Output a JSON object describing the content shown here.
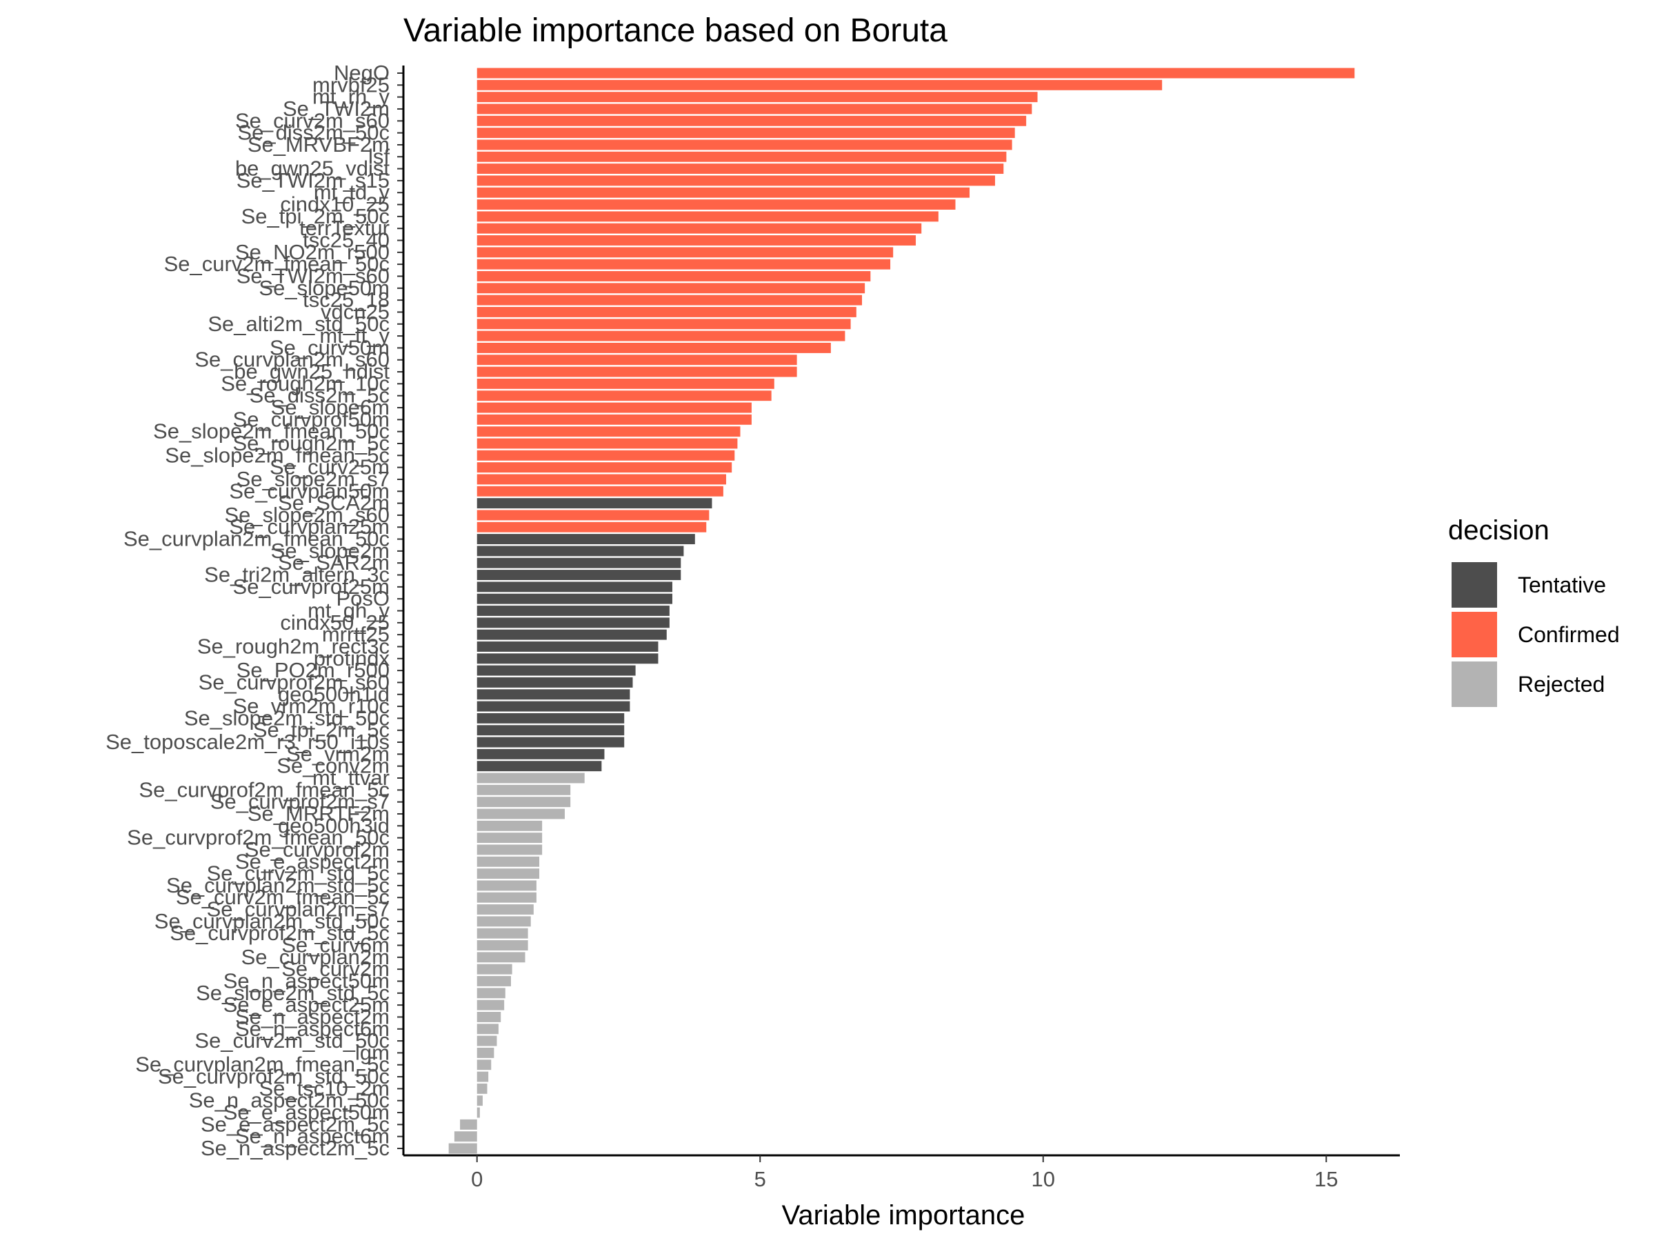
{
  "chart_data": {
    "type": "bar",
    "orientation": "horizontal",
    "title": "Variable importance based on Boruta",
    "xlabel": "Variable importance",
    "ylabel": "",
    "xlim": [
      -1.3,
      16.3
    ],
    "xticks": [
      0,
      5,
      10,
      15
    ],
    "grid": false,
    "legend": {
      "title": "decision",
      "position": "right",
      "entries": [
        {
          "label": "Tentative",
          "color": "#4d4d4d"
        },
        {
          "label": "Confirmed",
          "color": "#ff6347"
        },
        {
          "label": "Rejected",
          "color": "#b3b3b3"
        }
      ]
    },
    "colors": {
      "Tentative": "#4d4d4d",
      "Confirmed": "#ff6347",
      "Rejected": "#b3b3b3"
    },
    "bars": [
      {
        "label": "NegO",
        "value": 15.5,
        "decision": "Confirmed"
      },
      {
        "label": "mrvbf25",
        "value": 12.1,
        "decision": "Confirmed"
      },
      {
        "label": "mt_rh_y",
        "value": 9.9,
        "decision": "Confirmed"
      },
      {
        "label": "Se_TWI2m",
        "value": 9.8,
        "decision": "Confirmed"
      },
      {
        "label": "Se_curv2m_s60",
        "value": 9.7,
        "decision": "Confirmed"
      },
      {
        "label": "Se_diss2m_50c",
        "value": 9.5,
        "decision": "Confirmed"
      },
      {
        "label": "Se_MRVBF2m",
        "value": 9.45,
        "decision": "Confirmed"
      },
      {
        "label": "lsf",
        "value": 9.35,
        "decision": "Confirmed"
      },
      {
        "label": "be_gwn25_vdist",
        "value": 9.3,
        "decision": "Confirmed"
      },
      {
        "label": "Se_TWI2m_s15",
        "value": 9.15,
        "decision": "Confirmed"
      },
      {
        "label": "mt_td_y",
        "value": 8.7,
        "decision": "Confirmed"
      },
      {
        "label": "cindx10_25",
        "value": 8.45,
        "decision": "Confirmed"
      },
      {
        "label": "Se_tpi_2m_50c",
        "value": 8.15,
        "decision": "Confirmed"
      },
      {
        "label": "terrTextur",
        "value": 7.85,
        "decision": "Confirmed"
      },
      {
        "label": "tsc25_40",
        "value": 7.75,
        "decision": "Confirmed"
      },
      {
        "label": "Se_NO2m_r500",
        "value": 7.35,
        "decision": "Confirmed"
      },
      {
        "label": "Se_curv2m_fmean_50c",
        "value": 7.3,
        "decision": "Confirmed"
      },
      {
        "label": "Se_TWI2m_s60",
        "value": 6.95,
        "decision": "Confirmed"
      },
      {
        "label": "Se_slope50m",
        "value": 6.85,
        "decision": "Confirmed"
      },
      {
        "label": "tsc25_18",
        "value": 6.8,
        "decision": "Confirmed"
      },
      {
        "label": "vdcn25",
        "value": 6.7,
        "decision": "Confirmed"
      },
      {
        "label": "Se_alti2m_std_50c",
        "value": 6.6,
        "decision": "Confirmed"
      },
      {
        "label": "mt_tt_y",
        "value": 6.5,
        "decision": "Confirmed"
      },
      {
        "label": "Se_curv50m",
        "value": 6.25,
        "decision": "Confirmed"
      },
      {
        "label": "Se_curvplan2m_s60",
        "value": 5.65,
        "decision": "Confirmed"
      },
      {
        "label": "be_gwn25_hdist",
        "value": 5.65,
        "decision": "Confirmed"
      },
      {
        "label": "Se_rough2m_10c",
        "value": 5.25,
        "decision": "Confirmed"
      },
      {
        "label": "Se_diss2m_5c",
        "value": 5.2,
        "decision": "Confirmed"
      },
      {
        "label": "Se_slope6m",
        "value": 4.85,
        "decision": "Confirmed"
      },
      {
        "label": "Se_curvprof50m",
        "value": 4.85,
        "decision": "Confirmed"
      },
      {
        "label": "Se_slope2m_fmean_50c",
        "value": 4.65,
        "decision": "Confirmed"
      },
      {
        "label": "Se_rough2m_5c",
        "value": 4.6,
        "decision": "Confirmed"
      },
      {
        "label": "Se_slope2m_fmean_5c",
        "value": 4.55,
        "decision": "Confirmed"
      },
      {
        "label": "Se_curv25m",
        "value": 4.5,
        "decision": "Confirmed"
      },
      {
        "label": "Se_slope2m_s7",
        "value": 4.4,
        "decision": "Confirmed"
      },
      {
        "label": "Se_curvplan50m",
        "value": 4.35,
        "decision": "Confirmed"
      },
      {
        "label": "Se_SCA2m",
        "value": 4.15,
        "decision": "Tentative"
      },
      {
        "label": "Se_slope2m_s60",
        "value": 4.1,
        "decision": "Confirmed"
      },
      {
        "label": "Se_curvplan25m",
        "value": 4.05,
        "decision": "Confirmed"
      },
      {
        "label": "Se_curvplan2m_fmean_50c",
        "value": 3.85,
        "decision": "Tentative"
      },
      {
        "label": "Se_slope2m",
        "value": 3.65,
        "decision": "Tentative"
      },
      {
        "label": "Se_SAR2m",
        "value": 3.6,
        "decision": "Tentative"
      },
      {
        "label": "Se_tri2m_altern_3c",
        "value": 3.6,
        "decision": "Tentative"
      },
      {
        "label": "Se_curvprof25m",
        "value": 3.45,
        "decision": "Tentative"
      },
      {
        "label": "PosO",
        "value": 3.45,
        "decision": "Tentative"
      },
      {
        "label": "mt_gh_y",
        "value": 3.4,
        "decision": "Tentative"
      },
      {
        "label": "cindx50_25",
        "value": 3.4,
        "decision": "Tentative"
      },
      {
        "label": "mrrtf25",
        "value": 3.35,
        "decision": "Tentative"
      },
      {
        "label": "Se_rough2m_rect3c",
        "value": 3.2,
        "decision": "Tentative"
      },
      {
        "label": "protindx",
        "value": 3.2,
        "decision": "Tentative"
      },
      {
        "label": "Se_PO2m_r500",
        "value": 2.8,
        "decision": "Tentative"
      },
      {
        "label": "Se_curvprof2m_s60",
        "value": 2.75,
        "decision": "Tentative"
      },
      {
        "label": "geo500h1id",
        "value": 2.7,
        "decision": "Tentative"
      },
      {
        "label": "Se_vrm2m_r10c",
        "value": 2.7,
        "decision": "Tentative"
      },
      {
        "label": "Se_slope2m_std_50c",
        "value": 2.6,
        "decision": "Tentative"
      },
      {
        "label": "Se_tpi_2m_5c",
        "value": 2.6,
        "decision": "Tentative"
      },
      {
        "label": "Se_toposcale2m_r3_r50_i10s",
        "value": 2.6,
        "decision": "Tentative"
      },
      {
        "label": "Se_vrm2m",
        "value": 2.25,
        "decision": "Tentative"
      },
      {
        "label": "Se_conv2m",
        "value": 2.2,
        "decision": "Tentative"
      },
      {
        "label": "mt_ttvar",
        "value": 1.9,
        "decision": "Rejected"
      },
      {
        "label": "Se_curvprof2m_fmean_5c",
        "value": 1.65,
        "decision": "Rejected"
      },
      {
        "label": "Se_curvprof2m_s7",
        "value": 1.65,
        "decision": "Rejected"
      },
      {
        "label": "Se_MRRTF2m",
        "value": 1.55,
        "decision": "Rejected"
      },
      {
        "label": "geo500h3id",
        "value": 1.15,
        "decision": "Rejected"
      },
      {
        "label": "Se_curvprof2m_fmean_50c",
        "value": 1.15,
        "decision": "Rejected"
      },
      {
        "label": "Se_curvprof2m",
        "value": 1.15,
        "decision": "Rejected"
      },
      {
        "label": "Se_e_aspect2m",
        "value": 1.1,
        "decision": "Rejected"
      },
      {
        "label": "Se_curv2m_std_5c",
        "value": 1.1,
        "decision": "Rejected"
      },
      {
        "label": "Se_curvplan2m_std_5c",
        "value": 1.05,
        "decision": "Rejected"
      },
      {
        "label": "Se_curv2m_fmean_5c",
        "value": 1.05,
        "decision": "Rejected"
      },
      {
        "label": "Se_curvplan2m_s7",
        "value": 1.0,
        "decision": "Rejected"
      },
      {
        "label": "Se_curvplan2m_std_50c",
        "value": 0.95,
        "decision": "Rejected"
      },
      {
        "label": "Se_curvprof2m_std_5c",
        "value": 0.9,
        "decision": "Rejected"
      },
      {
        "label": "Se_curv6m",
        "value": 0.9,
        "decision": "Rejected"
      },
      {
        "label": "Se_curvplan2m",
        "value": 0.85,
        "decision": "Rejected"
      },
      {
        "label": "Se_curv2m",
        "value": 0.62,
        "decision": "Rejected"
      },
      {
        "label": "Se_n_aspect50m",
        "value": 0.6,
        "decision": "Rejected"
      },
      {
        "label": "Se_slope2m_std_5c",
        "value": 0.5,
        "decision": "Rejected"
      },
      {
        "label": "Se_e_aspect25m",
        "value": 0.48,
        "decision": "Rejected"
      },
      {
        "label": "Se_n_aspect2m",
        "value": 0.42,
        "decision": "Rejected"
      },
      {
        "label": "Se_n_aspect6m",
        "value": 0.38,
        "decision": "Rejected"
      },
      {
        "label": "Se_curv2m_std_50c",
        "value": 0.35,
        "decision": "Rejected"
      },
      {
        "label": "lgm",
        "value": 0.3,
        "decision": "Rejected"
      },
      {
        "label": "Se_curvplan2m_fmean_5c",
        "value": 0.25,
        "decision": "Rejected"
      },
      {
        "label": "Se_curvprof2m_std_50c",
        "value": 0.2,
        "decision": "Rejected"
      },
      {
        "label": "Se_tsc10_2m",
        "value": 0.18,
        "decision": "Rejected"
      },
      {
        "label": "Se_n_aspect2m_50c",
        "value": 0.1,
        "decision": "Rejected"
      },
      {
        "label": "Se_e_aspect50m",
        "value": 0.05,
        "decision": "Rejected"
      },
      {
        "label": "Se_e_aspect2m_5c",
        "value": -0.3,
        "decision": "Rejected"
      },
      {
        "label": "Se_n_aspect6m",
        "value": -0.4,
        "decision": "Rejected"
      },
      {
        "label": "Se_n_aspect2m_5c",
        "value": -0.5,
        "decision": "Rejected"
      }
    ]
  }
}
